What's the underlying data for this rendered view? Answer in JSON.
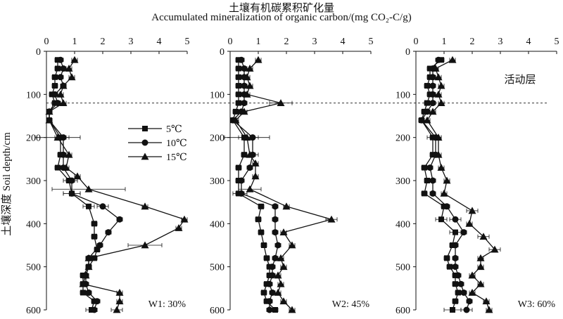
{
  "title_cn": "土壤有机碳累积矿化量",
  "title_en": "Accumulated mineralization of organic carbon/(mg CO₂-C/g)",
  "ylabel": "土壤深度 Soil depth/cm",
  "colors": {
    "ink": "#111111",
    "guide": "#333333"
  },
  "legend": {
    "placement": "upper-right of first panel",
    "entries": [
      {
        "label": "5℃",
        "marker": "square"
      },
      {
        "label": "10℃",
        "marker": "circle"
      },
      {
        "label": "15℃",
        "marker": "triangle"
      }
    ]
  },
  "chart_data": [
    {
      "type": "line",
      "panel_label": "W1: 30%",
      "xlim": [
        0,
        5
      ],
      "xticks": [
        0,
        1,
        2,
        3,
        4,
        5
      ],
      "ylim": [
        0,
        600
      ],
      "yticks": [
        0,
        100,
        200,
        300,
        400,
        500,
        600
      ],
      "y_inverted": true,
      "reference_line_depth": 120,
      "series": [
        {
          "name": "5℃",
          "marker": "square",
          "x": [
            0.4,
            0.4,
            0.3,
            0.3,
            0.2,
            0.3,
            0.1,
            0.1,
            0.5,
            0.5,
            0.4,
            0.8,
            0.9,
            1.5,
            1.7,
            1.7,
            1.8,
            1.7,
            1.5,
            1.3,
            1.3,
            1.3,
            1.7,
            1.6
          ],
          "y": [
            20,
            40,
            60,
            80,
            100,
            120,
            140,
            160,
            200,
            240,
            270,
            300,
            330,
            360,
            400,
            430,
            460,
            480,
            500,
            520,
            540,
            560,
            580,
            600
          ],
          "err": [
            0.1,
            0.1,
            0.1,
            0.1,
            0.1,
            0.1,
            0.1,
            0.1,
            0.2,
            0.1,
            0.1,
            0.2,
            0.3,
            0.2,
            0.1,
            0.1,
            0.1,
            0.1,
            0.1,
            0.1,
            0.1,
            0.1,
            0.1,
            0.2
          ]
        },
        {
          "name": "10℃",
          "marker": "circle",
          "x": [
            0.5,
            0.6,
            0.5,
            0.6,
            0.3,
            0.4,
            0.1,
            0.1,
            0.6,
            0.6,
            0.6,
            0.9,
            0.9,
            2.0,
            2.6,
            2.2,
            1.9,
            1.5,
            1.5,
            1.4,
            1.4,
            1.5,
            1.8,
            1.7
          ],
          "y": [
            20,
            40,
            60,
            80,
            100,
            120,
            140,
            160,
            200,
            240,
            270,
            300,
            330,
            360,
            390,
            420,
            450,
            480,
            500,
            520,
            540,
            560,
            580,
            600
          ],
          "err": [
            0.1,
            0.1,
            0.1,
            0.1,
            0.1,
            0.1,
            0.1,
            0.1,
            0.2,
            0.1,
            0.1,
            0.2,
            0.3,
            0.2,
            0.1,
            0.1,
            0.1,
            0.1,
            0.1,
            0.1,
            0.1,
            0.1,
            0.1,
            0.1
          ]
        },
        {
          "name": "15℃",
          "marker": "triangle",
          "x": [
            1.0,
            0.8,
            0.9,
            0.6,
            0.5,
            0.6,
            0.1,
            0.1,
            0.4,
            0.8,
            0.7,
            1.1,
            1.5,
            3.5,
            4.9,
            4.7,
            3.5,
            1.5,
            1.5,
            1.4,
            1.3,
            2.6,
            2.6,
            2.5
          ],
          "y": [
            20,
            40,
            60,
            80,
            100,
            120,
            140,
            160,
            200,
            240,
            270,
            290,
            320,
            360,
            390,
            410,
            450,
            480,
            500,
            520,
            540,
            560,
            580,
            600
          ],
          "err": [
            0.1,
            0.1,
            0.1,
            0.1,
            0.1,
            0.1,
            0.1,
            0.1,
            0.8,
            0.1,
            0.1,
            0.1,
            1.3,
            0.1,
            0.1,
            0.1,
            0.6,
            0.1,
            0.1,
            0.1,
            0.1,
            0.1,
            0.1,
            0.2
          ]
        }
      ]
    },
    {
      "type": "line",
      "panel_label": "W2: 45%",
      "xlim": [
        0,
        5
      ],
      "xticks": [
        0,
        1,
        2,
        3,
        4,
        5
      ],
      "ylim": [
        0,
        600
      ],
      "yticks": [
        0,
        100,
        200,
        300,
        400,
        500,
        600
      ],
      "y_inverted": true,
      "reference_line_depth": 120,
      "series": [
        {
          "name": "5℃",
          "marker": "square",
          "x": [
            0.3,
            0.3,
            0.3,
            0.3,
            0.3,
            0.3,
            0.2,
            0.1,
            0.5,
            0.5,
            0.3,
            0.3,
            0.3,
            1.1,
            1.0,
            1.1,
            1.2,
            1.3,
            1.4,
            1.4,
            1.3,
            1.2,
            1.3,
            1.6
          ],
          "y": [
            20,
            40,
            60,
            80,
            100,
            120,
            140,
            160,
            200,
            240,
            270,
            300,
            330,
            360,
            390,
            420,
            450,
            480,
            500,
            520,
            540,
            560,
            580,
            600
          ],
          "err": [
            0.1,
            0.1,
            0.1,
            0.1,
            0.1,
            0.1,
            0.1,
            0.1,
            0.2,
            0.1,
            0.1,
            0.1,
            0.2,
            0.1,
            0.1,
            0.1,
            0.1,
            0.1,
            0.1,
            0.1,
            0.1,
            0.1,
            0.1,
            0.1
          ]
        },
        {
          "name": "10℃",
          "marker": "circle",
          "x": [
            0.4,
            0.5,
            0.5,
            0.5,
            0.5,
            0.5,
            0.4,
            0.1,
            0.8,
            0.8,
            0.7,
            0.4,
            0.4,
            1.6,
            1.6,
            1.6,
            1.7,
            1.6,
            1.5,
            1.5,
            1.4,
            1.5,
            1.4,
            1.4
          ],
          "y": [
            20,
            40,
            60,
            80,
            100,
            120,
            140,
            160,
            200,
            240,
            270,
            300,
            330,
            360,
            390,
            420,
            450,
            480,
            500,
            520,
            540,
            560,
            580,
            600
          ],
          "err": [
            0.1,
            0.1,
            0.1,
            0.1,
            0.1,
            0.1,
            0.1,
            0.1,
            0.2,
            0.1,
            0.1,
            0.1,
            0.2,
            0.1,
            0.1,
            0.1,
            0.1,
            0.1,
            0.1,
            0.1,
            0.1,
            0.1,
            0.1,
            0.1
          ]
        },
        {
          "name": "15℃",
          "marker": "triangle",
          "x": [
            1.0,
            0.7,
            0.6,
            0.7,
            0.6,
            1.8,
            0.5,
            0.2,
            0.6,
            0.7,
            0.9,
            0.9,
            0.7,
            2.0,
            3.6,
            1.9,
            2.2,
            1.8,
            1.9,
            1.7,
            1.8,
            1.7,
            1.9,
            2.2
          ],
          "y": [
            20,
            40,
            60,
            80,
            100,
            120,
            140,
            160,
            200,
            240,
            260,
            290,
            320,
            360,
            390,
            420,
            450,
            480,
            500,
            520,
            540,
            560,
            580,
            600
          ],
          "err": [
            0.1,
            0.1,
            0.1,
            0.1,
            0.1,
            0.4,
            0.1,
            0.1,
            0.8,
            0.3,
            0.1,
            0.1,
            0.4,
            0.1,
            0.2,
            0.1,
            0.1,
            0.1,
            0.1,
            0.1,
            0.1,
            0.1,
            0.1,
            0.1
          ]
        }
      ]
    },
    {
      "type": "line",
      "panel_label": "W3: 60%",
      "annotation": "活动层",
      "xlim": [
        0,
        5
      ],
      "xticks": [
        0,
        1,
        2,
        3,
        4,
        5
      ],
      "ylim": [
        0,
        600
      ],
      "yticks": [
        0,
        100,
        200,
        300,
        400,
        500,
        600
      ],
      "y_inverted": true,
      "reference_line_depth": 120,
      "series": [
        {
          "name": "5℃",
          "marker": "square",
          "x": [
            0.9,
            0.5,
            0.5,
            0.4,
            0.5,
            0.4,
            0.3,
            0.2,
            0.6,
            0.6,
            0.3,
            0.4,
            0.3,
            1.0,
            0.9,
            1.4,
            1.3,
            1.1,
            1.2,
            1.4,
            1.4,
            1.5,
            1.4,
            1.3
          ],
          "y": [
            20,
            40,
            60,
            80,
            100,
            120,
            140,
            160,
            200,
            240,
            270,
            300,
            330,
            360,
            390,
            420,
            450,
            480,
            500,
            520,
            540,
            560,
            580,
            600
          ],
          "err": [
            0.1,
            0.1,
            0.1,
            0.1,
            0.1,
            0.1,
            0.1,
            0.1,
            0.2,
            0.1,
            0.1,
            0.1,
            0.1,
            0.1,
            0.2,
            0.2,
            0.1,
            0.1,
            0.1,
            0.1,
            0.1,
            0.1,
            0.1,
            0.3
          ]
        },
        {
          "name": "10℃",
          "marker": "circle",
          "x": [
            0.8,
            0.6,
            0.6,
            0.6,
            0.6,
            0.6,
            0.4,
            0.2,
            0.7,
            0.7,
            0.5,
            0.6,
            0.6,
            1.1,
            1.4,
            1.7,
            1.4,
            1.4,
            1.4,
            1.5,
            1.6,
            1.7,
            1.9,
            1.8
          ],
          "y": [
            20,
            40,
            60,
            80,
            100,
            120,
            140,
            160,
            200,
            240,
            270,
            300,
            330,
            360,
            390,
            420,
            450,
            480,
            500,
            520,
            540,
            560,
            580,
            600
          ],
          "err": [
            0.1,
            0.1,
            0.1,
            0.1,
            0.1,
            0.1,
            0.1,
            0.1,
            0.2,
            0.1,
            0.1,
            0.1,
            0.1,
            0.1,
            0.2,
            0.1,
            0.1,
            0.1,
            0.1,
            0.1,
            0.1,
            0.1,
            0.1,
            0.2
          ]
        },
        {
          "name": "15℃",
          "marker": "triangle",
          "x": [
            1.3,
            0.7,
            0.8,
            0.9,
            0.8,
            0.9,
            0.6,
            0.4,
            0.8,
            0.8,
            0.9,
            1.1,
            1.0,
            2.0,
            1.9,
            2.4,
            2.8,
            2.3,
            2.3,
            2.0,
            2.3,
            2.0,
            2.5,
            2.6
          ],
          "y": [
            20,
            40,
            60,
            80,
            100,
            120,
            140,
            160,
            200,
            240,
            270,
            300,
            330,
            370,
            400,
            430,
            460,
            480,
            500,
            520,
            540,
            560,
            580,
            600
          ],
          "err": [
            0.1,
            0.1,
            0.1,
            0.1,
            0.1,
            0.1,
            0.1,
            0.1,
            0.1,
            0.1,
            0.1,
            0.1,
            0.1,
            0.2,
            0.1,
            0.2,
            0.2,
            0.1,
            0.1,
            0.1,
            0.1,
            0.1,
            0.1,
            0.1
          ]
        }
      ]
    }
  ]
}
